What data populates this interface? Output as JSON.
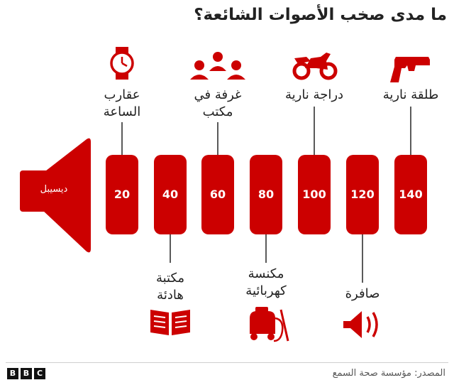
{
  "title": "ما مدى صخب الأصوات الشائعة؟",
  "unit_label": "ديسيبل",
  "colors": {
    "accent": "#cc0000",
    "text": "#222222",
    "muted": "#555555"
  },
  "levels": [
    {
      "value": "20",
      "label_line1": "عقارب",
      "label_line2": "الساعة",
      "position": "top",
      "icon": "wristwatch-icon"
    },
    {
      "value": "40",
      "label_line1": "مكتبة",
      "label_line2": "هادئة",
      "position": "bottom",
      "icon": "open-book-icon"
    },
    {
      "value": "60",
      "label_line1": "غرفة في",
      "label_line2": "مكتب",
      "position": "top",
      "icon": "people-group-icon"
    },
    {
      "value": "80",
      "label_line1": "مكنسة",
      "label_line2": "كهربائية",
      "position": "bottom",
      "icon": "vacuum-cleaner-icon"
    },
    {
      "value": "100",
      "label_line1": "دراجة نارية",
      "label_line2": "",
      "position": "top",
      "icon": "motorcycle-icon"
    },
    {
      "value": "120",
      "label_line1": "صافرة",
      "label_line2": "",
      "position": "bottom",
      "icon": "siren-speaker-icon"
    },
    {
      "value": "140",
      "label_line1": "طلقة نارية",
      "label_line2": "",
      "position": "top",
      "icon": "pistol-icon"
    }
  ],
  "source": "المصدر: مؤسسة صحة السمع",
  "logo": [
    "B",
    "B",
    "C"
  ]
}
